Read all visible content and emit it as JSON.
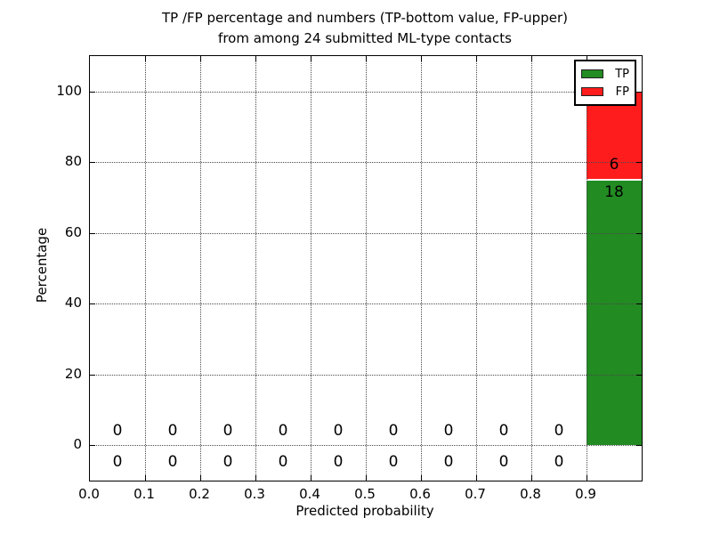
{
  "figure": {
    "title_line1": "TP /FP percentage and numbers (TP-bottom value, FP-upper)",
    "title_line2": "from among 24 submitted ML-type contacts"
  },
  "chart_data": {
    "type": "bar",
    "stacked": true,
    "title": "TP /FP percentage and numbers (TP-bottom value, FP-upper) from among 24 submitted ML-type contacts",
    "xlabel": "Predicted probability",
    "ylabel": "Percentage",
    "xlim": [
      0.0,
      1.0
    ],
    "ylim": [
      -10,
      110
    ],
    "x_tick_values": [
      0.0,
      0.1,
      0.2,
      0.3,
      0.4,
      0.5,
      0.6,
      0.7,
      0.8,
      0.9
    ],
    "x_tick_labels": [
      "0.0",
      "0.1",
      "0.2",
      "0.3",
      "0.4",
      "0.5",
      "0.6",
      "0.7",
      "0.8",
      "0.9"
    ],
    "y_tick_values": [
      0,
      20,
      40,
      60,
      80,
      100
    ],
    "bin_width": 0.1,
    "total_contacts": 24,
    "grid": "dotted, drawn above bars",
    "bins": [
      {
        "x_start": 0.0,
        "tp_count": 0,
        "fp_count": 0,
        "tp_pct": 0,
        "fp_pct": 0
      },
      {
        "x_start": 0.1,
        "tp_count": 0,
        "fp_count": 0,
        "tp_pct": 0,
        "fp_pct": 0
      },
      {
        "x_start": 0.2,
        "tp_count": 0,
        "fp_count": 0,
        "tp_pct": 0,
        "fp_pct": 0
      },
      {
        "x_start": 0.3,
        "tp_count": 0,
        "fp_count": 0,
        "tp_pct": 0,
        "fp_pct": 0
      },
      {
        "x_start": 0.4,
        "tp_count": 0,
        "fp_count": 0,
        "tp_pct": 0,
        "fp_pct": 0
      },
      {
        "x_start": 0.5,
        "tp_count": 0,
        "fp_count": 0,
        "tp_pct": 0,
        "fp_pct": 0
      },
      {
        "x_start": 0.6,
        "tp_count": 0,
        "fp_count": 0,
        "tp_pct": 0,
        "fp_pct": 0
      },
      {
        "x_start": 0.7,
        "tp_count": 0,
        "fp_count": 0,
        "tp_pct": 0,
        "fp_pct": 0
      },
      {
        "x_start": 0.8,
        "tp_count": 0,
        "fp_count": 0,
        "tp_pct": 0,
        "fp_pct": 0
      },
      {
        "x_start": 0.9,
        "tp_count": 18,
        "fp_count": 6,
        "tp_pct": 75,
        "fp_pct": 25
      }
    ],
    "legend": {
      "position": "upper right",
      "entries": [
        {
          "label": "TP",
          "color": "#228b22"
        },
        {
          "label": "FP",
          "color": "#ff1c1c"
        }
      ]
    }
  }
}
